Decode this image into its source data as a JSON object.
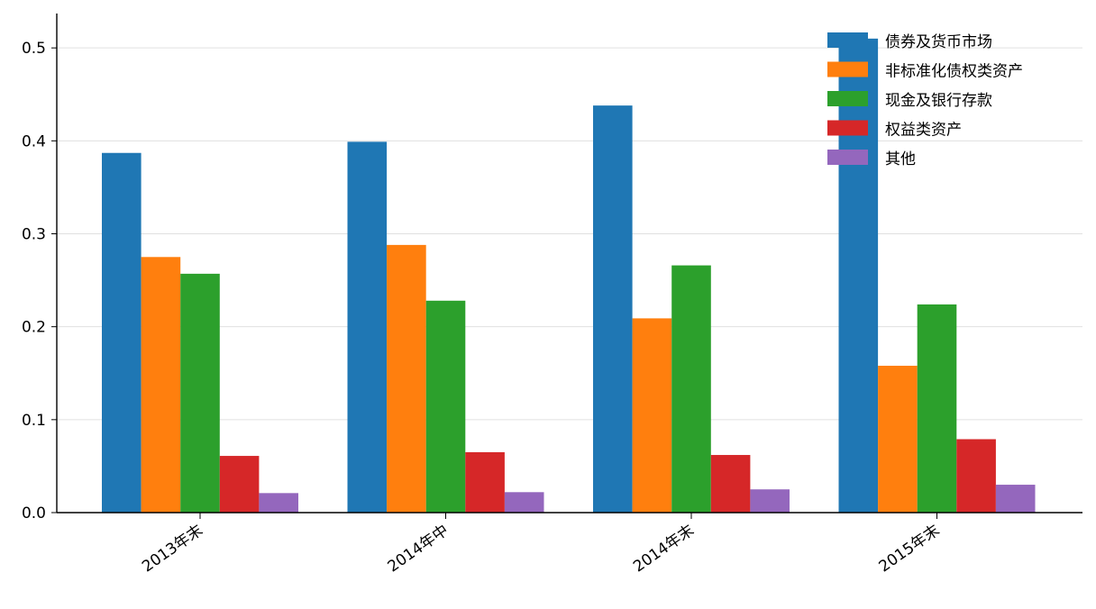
{
  "chart_data": {
    "type": "bar",
    "title": "",
    "xlabel": "",
    "ylabel": "",
    "ylim": [
      0,
      0.537
    ],
    "yticks": [
      0.0,
      0.1,
      0.2,
      0.3,
      0.4,
      0.5
    ],
    "ytick_labels": [
      "0.0",
      "0.1",
      "0.2",
      "0.3",
      "0.4",
      "0.5"
    ],
    "grid": "horizontal",
    "legend_position": "top-right",
    "categories": [
      "2013年末",
      "2014年中",
      "2014年末",
      "2015年末"
    ],
    "series": [
      {
        "name": "债券及货币市场",
        "color": "#1f77b4",
        "values": [
          0.387,
          0.399,
          0.438,
          0.51
        ]
      },
      {
        "name": "非标准化债权类资产",
        "color": "#ff7f0e",
        "values": [
          0.275,
          0.288,
          0.209,
          0.158
        ]
      },
      {
        "name": "现金及银行存款",
        "color": "#2ca02c",
        "values": [
          0.257,
          0.228,
          0.266,
          0.224
        ]
      },
      {
        "name": "权益类资产",
        "color": "#d62728",
        "values": [
          0.061,
          0.065,
          0.062,
          0.079
        ]
      },
      {
        "name": "其他",
        "color": "#9467bd",
        "values": [
          0.021,
          0.022,
          0.025,
          0.03
        ]
      }
    ]
  }
}
